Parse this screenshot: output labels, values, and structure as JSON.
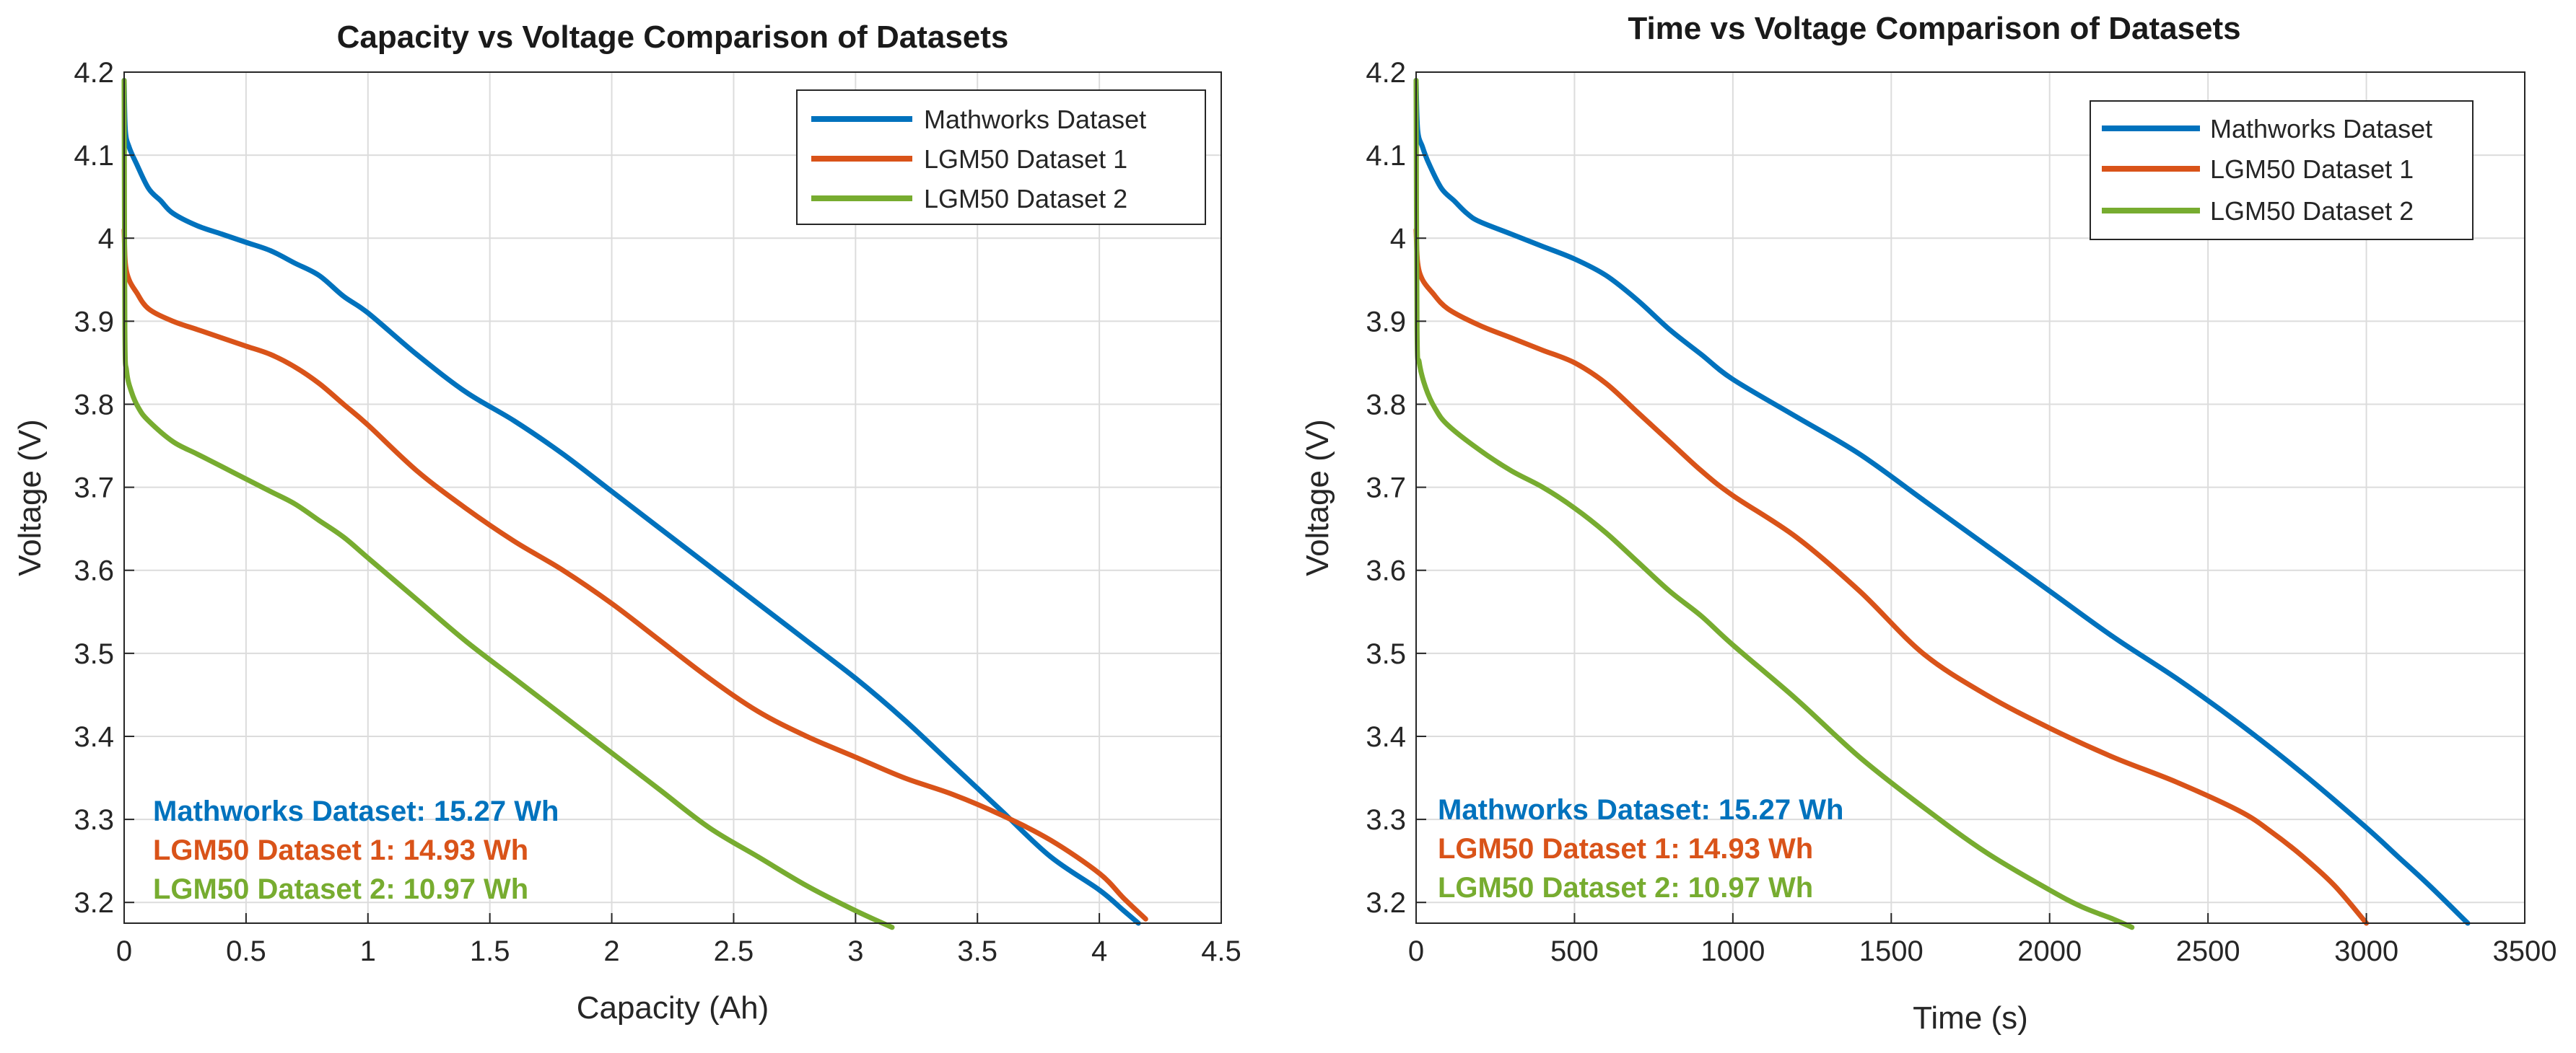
{
  "chart_data": [
    {
      "type": "line",
      "title": "Capacity vs Voltage Comparison of Datasets",
      "xlabel": "Capacity (Ah)",
      "ylabel": "Voltage (V)",
      "xlim": [
        0,
        4.5
      ],
      "ylim": [
        3.175,
        4.2
      ],
      "xticks": [
        0,
        0.5,
        1,
        1.5,
        2,
        2.5,
        3,
        3.5,
        4,
        4.5
      ],
      "xtick_labels": [
        "0",
        "0.5",
        "1",
        "1.5",
        "2",
        "2.5",
        "3",
        "3.5",
        "4",
        "4.5"
      ],
      "yticks": [
        3.2,
        3.3,
        3.4,
        3.5,
        3.6,
        3.7,
        3.8,
        3.9,
        4.0,
        4.1,
        4.2
      ],
      "ytick_labels": [
        "3.2",
        "3.3",
        "3.4",
        "3.5",
        "3.6",
        "3.7",
        "3.8",
        "3.9",
        "4",
        "4.1",
        "4.2"
      ],
      "grid": true,
      "legend_position": "top-right",
      "series": [
        {
          "name": "Mathworks Dataset",
          "color": "#0072BD",
          "x": [
            0,
            0.005,
            0.02,
            0.05,
            0.1,
            0.15,
            0.2,
            0.3,
            0.4,
            0.5,
            0.6,
            0.7,
            0.8,
            0.9,
            1.0,
            1.2,
            1.4,
            1.6,
            1.8,
            2.0,
            2.2,
            2.4,
            2.6,
            2.8,
            3.0,
            3.2,
            3.4,
            3.6,
            3.8,
            4.0,
            4.1,
            4.16
          ],
          "y": [
            4.19,
            4.13,
            4.11,
            4.09,
            4.06,
            4.045,
            4.03,
            4.015,
            4.005,
            3.995,
            3.985,
            3.97,
            3.955,
            3.93,
            3.91,
            3.86,
            3.815,
            3.78,
            3.74,
            3.695,
            3.65,
            3.605,
            3.56,
            3.515,
            3.47,
            3.42,
            3.365,
            3.31,
            3.255,
            3.215,
            3.19,
            3.175
          ]
        },
        {
          "name": "LGM50 Dataset 1",
          "color": "#D95319",
          "x": [
            0,
            0.005,
            0.02,
            0.05,
            0.1,
            0.2,
            0.3,
            0.4,
            0.5,
            0.6,
            0.7,
            0.8,
            0.9,
            1.0,
            1.2,
            1.4,
            1.6,
            1.8,
            2.0,
            2.2,
            2.4,
            2.6,
            2.8,
            3.0,
            3.2,
            3.4,
            3.6,
            3.8,
            4.0,
            4.1,
            4.19
          ],
          "y": [
            4.01,
            3.97,
            3.95,
            3.935,
            3.915,
            3.9,
            3.89,
            3.88,
            3.87,
            3.86,
            3.845,
            3.825,
            3.8,
            3.775,
            3.72,
            3.675,
            3.635,
            3.6,
            3.56,
            3.515,
            3.47,
            3.43,
            3.4,
            3.375,
            3.35,
            3.33,
            3.305,
            3.275,
            3.235,
            3.205,
            3.18
          ]
        },
        {
          "name": "LGM50 Dataset 2",
          "color": "#77AC30",
          "x": [
            0,
            0.003,
            0.01,
            0.03,
            0.06,
            0.1,
            0.2,
            0.3,
            0.4,
            0.5,
            0.6,
            0.7,
            0.8,
            0.9,
            1.0,
            1.2,
            1.4,
            1.6,
            1.8,
            2.0,
            2.2,
            2.4,
            2.6,
            2.8,
            3.0,
            3.15
          ],
          "y": [
            4.19,
            3.89,
            3.84,
            3.815,
            3.795,
            3.78,
            3.755,
            3.74,
            3.725,
            3.71,
            3.695,
            3.68,
            3.66,
            3.64,
            3.615,
            3.565,
            3.515,
            3.47,
            3.425,
            3.38,
            3.335,
            3.29,
            3.255,
            3.22,
            3.19,
            3.17
          ]
        }
      ],
      "annotations": [
        {
          "text": "Mathworks Dataset: 15.27 Wh",
          "color": "#0072BD"
        },
        {
          "text": "LGM50 Dataset 1: 14.93 Wh",
          "color": "#D95319"
        },
        {
          "text": "LGM50 Dataset 2: 10.97 Wh",
          "color": "#77AC30"
        }
      ]
    },
    {
      "type": "line",
      "title": "Time vs Voltage Comparison of Datasets",
      "xlabel": "Time (s)",
      "ylabel": "Voltage (V)",
      "xlim": [
        0,
        3500
      ],
      "ylim": [
        3.175,
        4.2
      ],
      "xticks": [
        0,
        500,
        1000,
        1500,
        2000,
        2500,
        3000,
        3500
      ],
      "xtick_labels": [
        "0",
        "500",
        "1000",
        "1500",
        "2000",
        "2500",
        "3000",
        "3500"
      ],
      "yticks": [
        3.2,
        3.3,
        3.4,
        3.5,
        3.6,
        3.7,
        3.8,
        3.9,
        4.0,
        4.1,
        4.2
      ],
      "ytick_labels": [
        "3.2",
        "3.3",
        "3.4",
        "3.5",
        "3.6",
        "3.7",
        "3.8",
        "3.9",
        "4",
        "4.1",
        "4.2"
      ],
      "grid": true,
      "legend_position": "top-right",
      "series": [
        {
          "name": "Mathworks Dataset",
          "color": "#0072BD",
          "x": [
            0,
            5,
            20,
            40,
            80,
            120,
            160,
            200,
            300,
            400,
            500,
            600,
            700,
            800,
            900,
            1000,
            1200,
            1400,
            1600,
            1800,
            2000,
            2200,
            2400,
            2600,
            2800,
            3000,
            3100,
            3200,
            3320
          ],
          "y": [
            4.19,
            4.13,
            4.11,
            4.09,
            4.06,
            4.045,
            4.03,
            4.02,
            4.005,
            3.99,
            3.975,
            3.955,
            3.925,
            3.89,
            3.86,
            3.83,
            3.785,
            3.74,
            3.685,
            3.63,
            3.575,
            3.52,
            3.47,
            3.415,
            3.355,
            3.29,
            3.255,
            3.22,
            3.175
          ]
        },
        {
          "name": "LGM50 Dataset 1",
          "color": "#D95319",
          "x": [
            0,
            5,
            20,
            50,
            100,
            200,
            300,
            400,
            500,
            600,
            700,
            800,
            900,
            1000,
            1200,
            1400,
            1600,
            1800,
            2000,
            2200,
            2400,
            2600,
            2700,
            2800,
            2900,
            3000
          ],
          "y": [
            4.01,
            3.97,
            3.95,
            3.935,
            3.915,
            3.895,
            3.88,
            3.865,
            3.85,
            3.825,
            3.79,
            3.755,
            3.72,
            3.69,
            3.64,
            3.575,
            3.5,
            3.45,
            3.41,
            3.375,
            3.345,
            3.31,
            3.285,
            3.255,
            3.22,
            3.175
          ]
        },
        {
          "name": "LGM50 Dataset 2",
          "color": "#77AC30",
          "x": [
            0,
            3,
            10,
            30,
            60,
            100,
            200,
            300,
            400,
            500,
            600,
            700,
            800,
            900,
            1000,
            1200,
            1400,
            1600,
            1800,
            2000,
            2100,
            2200,
            2260
          ],
          "y": [
            4.19,
            3.89,
            3.85,
            3.82,
            3.795,
            3.775,
            3.745,
            3.72,
            3.7,
            3.675,
            3.645,
            3.61,
            3.575,
            3.545,
            3.51,
            3.445,
            3.375,
            3.315,
            3.26,
            3.215,
            3.195,
            3.18,
            3.17
          ]
        }
      ],
      "annotations": [
        {
          "text": "Mathworks Dataset: 15.27 Wh",
          "color": "#0072BD"
        },
        {
          "text": "LGM50 Dataset 1: 14.93 Wh",
          "color": "#D95319"
        },
        {
          "text": "LGM50 Dataset 2: 10.97 Wh",
          "color": "#77AC30"
        }
      ]
    }
  ]
}
